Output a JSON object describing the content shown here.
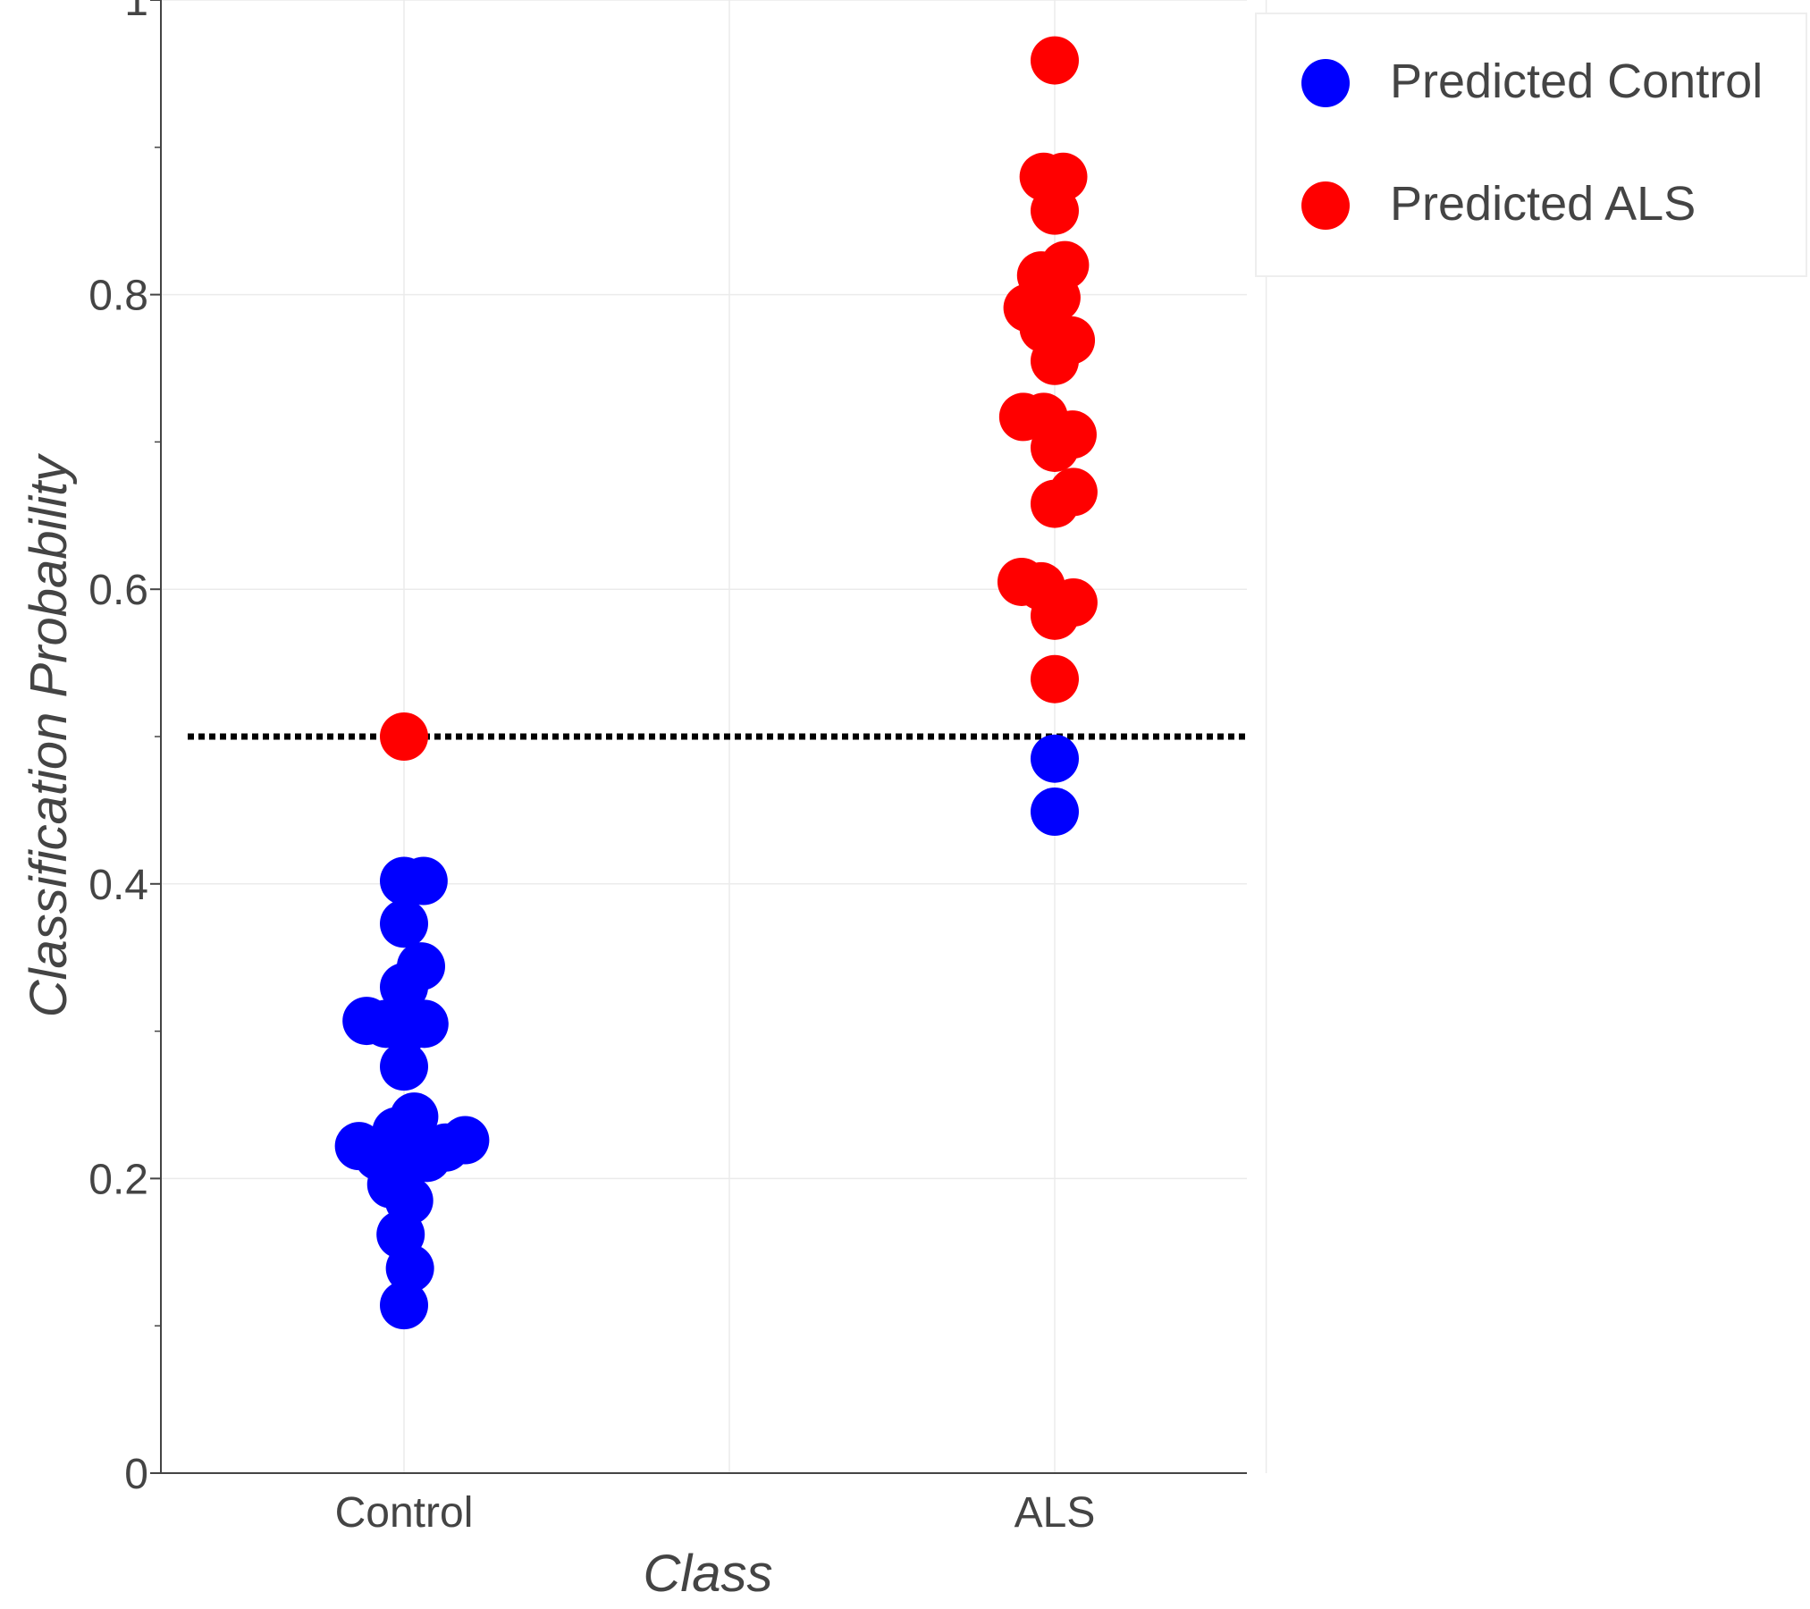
{
  "chart_data": {
    "type": "scatter",
    "xlabel": "Class",
    "ylabel": "Classification Probability",
    "categories": [
      "Control",
      "ALS"
    ],
    "ylim": [
      0,
      1
    ],
    "y_ticks": [
      "0",
      "0.2",
      "0.4",
      "0.6",
      "0.8",
      "1"
    ],
    "threshold": 0.5,
    "grid": true,
    "legend_position": "top-right",
    "series": [
      {
        "name": "Predicted Control",
        "color": "#0000ff",
        "points": [
          {
            "x": "Control",
            "jitter": 0.0,
            "y": 0.402
          },
          {
            "x": "Control",
            "jitter": 0.23,
            "y": 0.402
          },
          {
            "x": "Control",
            "jitter": 0.0,
            "y": 0.373
          },
          {
            "x": "Control",
            "jitter": 0.2,
            "y": 0.344
          },
          {
            "x": "Control",
            "jitter": 0.0,
            "y": 0.33
          },
          {
            "x": "Control",
            "jitter": -0.44,
            "y": 0.307
          },
          {
            "x": "Control",
            "jitter": -0.21,
            "y": 0.305
          },
          {
            "x": "Control",
            "jitter": 0.01,
            "y": 0.301
          },
          {
            "x": "Control",
            "jitter": 0.24,
            "y": 0.305
          },
          {
            "x": "Control",
            "jitter": 0.0,
            "y": 0.276
          },
          {
            "x": "Control",
            "jitter": 0.12,
            "y": 0.242
          },
          {
            "x": "Control",
            "jitter": -0.09,
            "y": 0.232
          },
          {
            "x": "Control",
            "jitter": -0.53,
            "y": 0.222
          },
          {
            "x": "Control",
            "jitter": -0.3,
            "y": 0.215
          },
          {
            "x": "Control",
            "jitter": 0.04,
            "y": 0.211
          },
          {
            "x": "Control",
            "jitter": 0.27,
            "y": 0.214
          },
          {
            "x": "Control",
            "jitter": 0.49,
            "y": 0.221
          },
          {
            "x": "Control",
            "jitter": 0.72,
            "y": 0.226
          },
          {
            "x": "Control",
            "jitter": -0.15,
            "y": 0.196
          },
          {
            "x": "Control",
            "jitter": 0.06,
            "y": 0.185
          },
          {
            "x": "Control",
            "jitter": -0.04,
            "y": 0.162
          },
          {
            "x": "Control",
            "jitter": 0.07,
            "y": 0.139
          },
          {
            "x": "Control",
            "jitter": 0.0,
            "y": 0.114
          },
          {
            "x": "ALS",
            "jitter": 0.0,
            "y": 0.485
          },
          {
            "x": "ALS",
            "jitter": 0.0,
            "y": 0.449
          }
        ]
      },
      {
        "name": "Predicted ALS",
        "color": "#ff0000",
        "points": [
          {
            "x": "Control",
            "jitter": 0.0,
            "y": 0.5
          },
          {
            "x": "ALS",
            "jitter": 0.0,
            "y": 0.959
          },
          {
            "x": "ALS",
            "jitter": -0.13,
            "y": 0.88
          },
          {
            "x": "ALS",
            "jitter": 0.1,
            "y": 0.88
          },
          {
            "x": "ALS",
            "jitter": 0.0,
            "y": 0.857
          },
          {
            "x": "ALS",
            "jitter": 0.12,
            "y": 0.82
          },
          {
            "x": "ALS",
            "jitter": -0.16,
            "y": 0.813
          },
          {
            "x": "ALS",
            "jitter": 0.02,
            "y": 0.798
          },
          {
            "x": "ALS",
            "jitter": -0.32,
            "y": 0.791
          },
          {
            "x": "ALS",
            "jitter": -0.13,
            "y": 0.777
          },
          {
            "x": "ALS",
            "jitter": 0.19,
            "y": 0.769
          },
          {
            "x": "ALS",
            "jitter": 0.0,
            "y": 0.755
          },
          {
            "x": "ALS",
            "jitter": -0.37,
            "y": 0.717
          },
          {
            "x": "ALS",
            "jitter": -0.13,
            "y": 0.717
          },
          {
            "x": "ALS",
            "jitter": 0.21,
            "y": 0.705
          },
          {
            "x": "ALS",
            "jitter": 0.0,
            "y": 0.696
          },
          {
            "x": "ALS",
            "jitter": 0.22,
            "y": 0.666
          },
          {
            "x": "ALS",
            "jitter": 0.0,
            "y": 0.658
          },
          {
            "x": "ALS",
            "jitter": -0.39,
            "y": 0.605
          },
          {
            "x": "ALS",
            "jitter": -0.16,
            "y": 0.602
          },
          {
            "x": "ALS",
            "jitter": 0.22,
            "y": 0.591
          },
          {
            "x": "ALS",
            "jitter": 0.0,
            "y": 0.582
          },
          {
            "x": "ALS",
            "jitter": 0.0,
            "y": 0.539
          }
        ]
      }
    ]
  }
}
